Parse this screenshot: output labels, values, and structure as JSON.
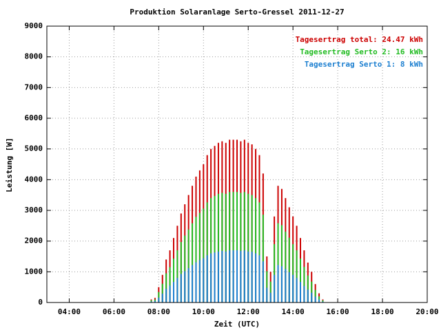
{
  "chart_data": {
    "type": "impulse",
    "title": "Produktion Solaranlage Serto-Gressel 2011-12-27",
    "xlabel": "Zeit (UTC)",
    "ylabel": "Leistung [W]",
    "x": [
      450,
      460,
      470,
      480,
      490,
      500,
      510,
      520,
      530,
      540,
      550,
      560,
      570,
      580,
      590,
      600,
      610,
      620,
      630,
      640,
      650,
      660,
      670,
      680,
      690,
      700,
      710,
      720,
      730,
      740,
      750,
      760,
      770,
      780,
      790,
      800,
      810,
      820,
      830,
      840,
      850,
      860,
      870,
      880,
      890,
      900,
      910,
      920,
      930
    ],
    "series": [
      {
        "name": "Tagesertrag total: 24.47 kWh",
        "color": "#cc0000",
        "values": [
          0,
          100,
          150,
          500,
          900,
          1400,
          1700,
          2100,
          2500,
          2900,
          3200,
          3500,
          3800,
          4100,
          4300,
          4500,
          4800,
          5000,
          5100,
          5200,
          5250,
          5200,
          5300,
          5300,
          5300,
          5250,
          5300,
          5200,
          5150,
          5000,
          4800,
          4200,
          1500,
          1000,
          2800,
          3800,
          3700,
          3400,
          3100,
          2800,
          2500,
          2100,
          1700,
          1300,
          1000,
          600,
          300,
          100,
          0
        ]
      },
      {
        "name": "Tagesertrag Serto 2: 16 kWh",
        "color": "#22bb22",
        "values": [
          0,
          70,
          100,
          340,
          610,
          950,
          1150,
          1430,
          1700,
          1970,
          2180,
          2380,
          2580,
          2790,
          2920,
          3060,
          3260,
          3400,
          3470,
          3540,
          3570,
          3540,
          3600,
          3600,
          3600,
          3570,
          3600,
          3540,
          3500,
          3400,
          3260,
          2860,
          1020,
          680,
          1900,
          2580,
          2520,
          2310,
          2110,
          1900,
          1700,
          1430,
          1160,
          880,
          680,
          410,
          200,
          70,
          0
        ]
      },
      {
        "name": "Tagesertrag Serto 1: 8 kWh",
        "color": "#1c7fd0",
        "values": [
          0,
          30,
          50,
          160,
          290,
          450,
          550,
          670,
          800,
          930,
          1020,
          1120,
          1220,
          1310,
          1380,
          1440,
          1540,
          1600,
          1630,
          1660,
          1680,
          1660,
          1700,
          1700,
          1700,
          1680,
          1700,
          1660,
          1650,
          1600,
          1540,
          1340,
          480,
          320,
          900,
          1220,
          1180,
          1090,
          990,
          900,
          800,
          670,
          540,
          420,
          320,
          190,
          100,
          30,
          0
        ]
      }
    ],
    "xlim": [
      180,
      1200
    ],
    "xticks": [
      {
        "value": 240,
        "label": "04:00"
      },
      {
        "value": 360,
        "label": "06:00"
      },
      {
        "value": 480,
        "label": "08:00"
      },
      {
        "value": 600,
        "label": "10:00"
      },
      {
        "value": 720,
        "label": "12:00"
      },
      {
        "value": 840,
        "label": "14:00"
      },
      {
        "value": 960,
        "label": "16:00"
      },
      {
        "value": 1080,
        "label": "18:00"
      },
      {
        "value": 1200,
        "label": "20:00"
      }
    ],
    "ylim": [
      0,
      9000
    ],
    "yticks": [
      0,
      1000,
      2000,
      3000,
      4000,
      5000,
      6000,
      7000,
      8000,
      9000
    ],
    "grid": true,
    "legend": "top-right"
  }
}
